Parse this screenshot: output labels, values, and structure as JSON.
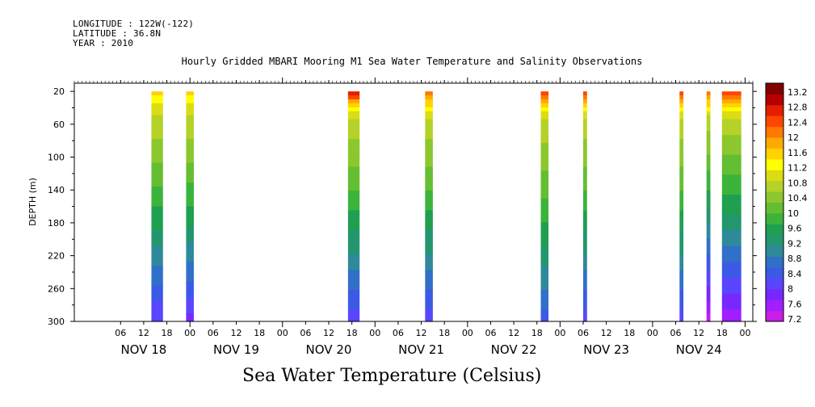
{
  "header": {
    "longitude": "LONGITUDE : 122W(-122)",
    "latitude": "LATITUDE : 36.8N",
    "year": "YEAR : 2010"
  },
  "chart_data": {
    "type": "heatmap",
    "title": "Hourly Gridded MBARI Mooring M1 Sea Water Temperature and Salinity Observations",
    "xlabel": "Sea Water Temperature (Celsius)",
    "ylabel": "DEPTH (m)",
    "y_range": [
      300,
      10
    ],
    "y_axis_inverted": true,
    "y_ticks": [
      20,
      60,
      100,
      140,
      180,
      220,
      260,
      300
    ],
    "x_range_hours": [
      "NOV 17 18:00",
      "NOV 25 02:00"
    ],
    "x_hour_ticks": [
      "06",
      "12",
      "18",
      "00",
      "06",
      "12",
      "18",
      "00",
      "06",
      "12",
      "18",
      "00",
      "06",
      "12",
      "18",
      "00",
      "06",
      "12",
      "18",
      "00",
      "06",
      "12",
      "18",
      "00",
      "06",
      "12",
      "18",
      "00"
    ],
    "x_day_labels": [
      "NOV 18",
      "NOV 19",
      "NOV 20",
      "NOV 21",
      "NOV 22",
      "NOV 23",
      "NOV 24"
    ],
    "colorbar": {
      "levels": [
        7.2,
        7.6,
        8,
        8.4,
        8.8,
        9.2,
        9.6,
        10,
        10.4,
        10.8,
        11.2,
        11.6,
        12,
        12.4,
        12.8,
        13.2
      ],
      "colors": [
        "#c81ee6",
        "#a01eff",
        "#7828ff",
        "#5a46ff",
        "#3c5ae6",
        "#3070c8",
        "#2e8a9a",
        "#23966e",
        "#1ea050",
        "#3cb43c",
        "#64be32",
        "#8cc82d",
        "#b4d228",
        "#dcdc14",
        "#ffff00",
        "#ffd200",
        "#ffaa00",
        "#ff7800",
        "#ff4600",
        "#e61e00",
        "#b40000",
        "#820000"
      ]
    },
    "data_note_series": [
      {
        "start": "NOV 18 14:00",
        "end": "NOV 18 17:00",
        "surface_temp": 11.4,
        "bottom_temp": 7.9
      },
      {
        "start": "NOV 18 23:00",
        "end": "NOV 19 01:00",
        "surface_temp": 11.4,
        "bottom_temp": 7.8
      },
      {
        "start": "NOV 20 17:00",
        "end": "NOV 20 20:00",
        "surface_temp": 12.6,
        "bottom_temp": 8.0
      },
      {
        "start": "NOV 21 13:00",
        "end": "NOV 21 15:00",
        "surface_temp": 12.2,
        "bottom_temp": 8.0
      },
      {
        "start": "NOV 22 19:00",
        "end": "NOV 22 21:00",
        "surface_temp": 12.3,
        "bottom_temp": 8.3
      },
      {
        "start": "NOV 23 06:00",
        "end": "NOV 23 07:00",
        "surface_temp": 12.3,
        "bottom_temp": 8.0
      },
      {
        "start": "NOV 24 07:00",
        "end": "NOV 24 08:00",
        "surface_temp": 12.4,
        "bottom_temp": 8.0
      },
      {
        "start": "NOV 24 14:00",
        "end": "NOV 24 15:00",
        "surface_temp": 12.2,
        "bottom_temp": 7.2
      },
      {
        "start": "NOV 24 18:00",
        "end": "NOV 24 23:00",
        "surface_temp": 12.4,
        "bottom_temp": 7.4
      }
    ]
  }
}
